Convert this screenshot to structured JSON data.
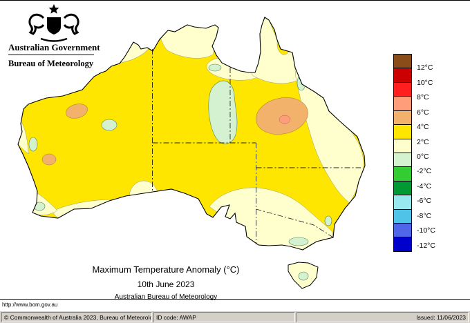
{
  "header": {
    "government": "Australian Government",
    "bureau": "Bureau of Meteorology"
  },
  "map": {
    "title": "Maximum Temperature Anomaly (°C)",
    "date": "10th June 2023",
    "org": "Australian Bureau of Meteorology"
  },
  "legend": {
    "unit": "°C",
    "labels": [
      "12°C",
      "10°C",
      "8°C",
      "6°C",
      "4°C",
      "2°C",
      "0°C",
      "-2°C",
      "-4°C",
      "-6°C",
      "-8°C",
      "-10°C",
      "-12°C"
    ],
    "colors": [
      "#8a4d1a",
      "#cb0000",
      "#ff1f1f",
      "#ff9d7a",
      "#f2b26b",
      "#ffe600",
      "#ffffcd",
      "#d4f2cf",
      "#33cc33",
      "#009933",
      "#97e9ef",
      "#4fc3e8",
      "#4f66e8",
      "#0000cd"
    ]
  },
  "footer": {
    "url": "http://www.bom.gov.au",
    "copyright": "© Commonwealth of Australia 2023, Bureau of Meteorology",
    "id_code": "ID code: AWAP",
    "issued": "Issued: 11/06/2023"
  }
}
